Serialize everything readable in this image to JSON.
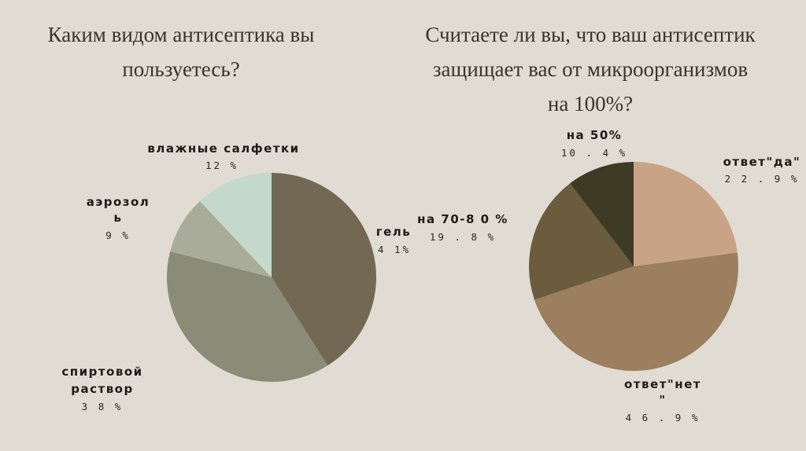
{
  "chart_data": [
    {
      "type": "pie",
      "title_lines": [
        "Каким видом антисептика вы",
        "пользуетесь?"
      ],
      "slices": [
        {
          "name": "гель",
          "value": 41,
          "value_label": "4 1%",
          "color": "#736854"
        },
        {
          "name": "спиртовой раствор",
          "name_lines": [
            "спиртовой",
            "раствор"
          ],
          "value": 38,
          "value_label": "3 8 %",
          "color": "#8a8c78"
        },
        {
          "name": "аэрозоль",
          "name_lines": [
            "аэрозол",
            "ь"
          ],
          "value": 9,
          "value_label": "9 %",
          "color": "#a8ac99"
        },
        {
          "name": "влажные салфетки",
          "name_lines": [
            "влажные салфетки"
          ],
          "value": 12,
          "value_label": "12 %",
          "color": "#c4d9cb"
        }
      ]
    },
    {
      "type": "pie",
      "title_lines": [
        "Считаете ли вы, что ваш антисептик",
        "защищает вас от микроорганизмов",
        "на 100%?"
      ],
      "slices": [
        {
          "name": "ответ\"да\"",
          "name_lines": [
            "ответ\"да\""
          ],
          "value": 22.9,
          "value_label": "2 2 . 9 %",
          "color": "#c9a385"
        },
        {
          "name": "ответ\"нет\"",
          "name_lines": [
            "ответ\"нет",
            "\""
          ],
          "value": 46.9,
          "value_label": "4 6 . 9 %",
          "color": "#9b7f5e"
        },
        {
          "name": "на 70-80 %",
          "name_lines": [
            "на 70-8 0 %"
          ],
          "value": 19.8,
          "value_label": "19 . 8 %",
          "color": "#6a5c3d"
        },
        {
          "name": "на 50%",
          "name_lines": [
            "на 50%"
          ],
          "value": 10.4,
          "value_label": "10 . 4 %",
          "color": "#3e3b25"
        }
      ]
    }
  ]
}
